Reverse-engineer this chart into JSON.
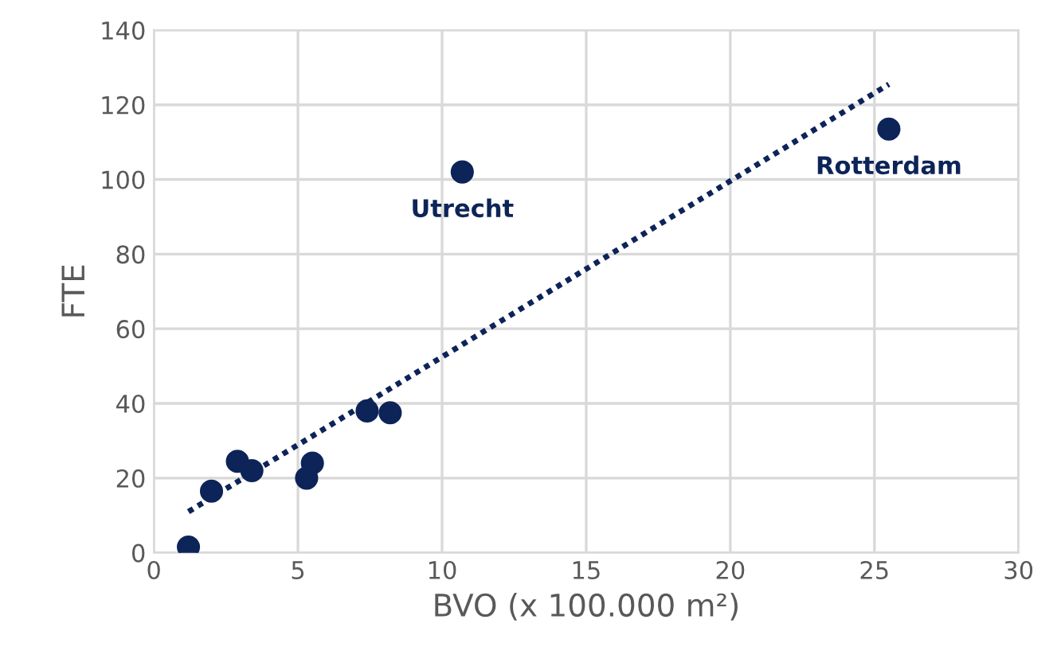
{
  "chart_data": {
    "type": "scatter",
    "xlabel": "BVO (x 100.000 m²)",
    "ylabel": "FTE",
    "series": [
      {
        "color": "#0d2459",
        "marker": "circle",
        "x": [
          1.2,
          2.0,
          2.9,
          3.4,
          5.3,
          5.5,
          7.4,
          8.2,
          10.7,
          25.5
        ],
        "values": [
          1.5,
          16.5,
          24.5,
          22,
          20,
          24,
          38,
          37.5,
          102,
          113.5
        ]
      },
      {
        "type": "line",
        "color": "#0d2459",
        "line_style": "dotted",
        "x": [
          1.2,
          25.5
        ],
        "values": [
          11,
          125.5
        ]
      }
    ],
    "annotations": [
      {
        "text": "Utrecht",
        "x": 10.7,
        "y": 102
      },
      {
        "text": "Rotterdam",
        "x": 25.5,
        "y": 113.5
      }
    ],
    "xlim": [
      0,
      30
    ],
    "xticks": [
      0,
      5,
      10,
      15,
      20,
      25,
      30
    ],
    "ylim": [
      0,
      140
    ],
    "yticks": [
      0,
      20,
      40,
      60,
      80,
      100,
      120,
      140
    ],
    "grid": true,
    "legend": false
  }
}
